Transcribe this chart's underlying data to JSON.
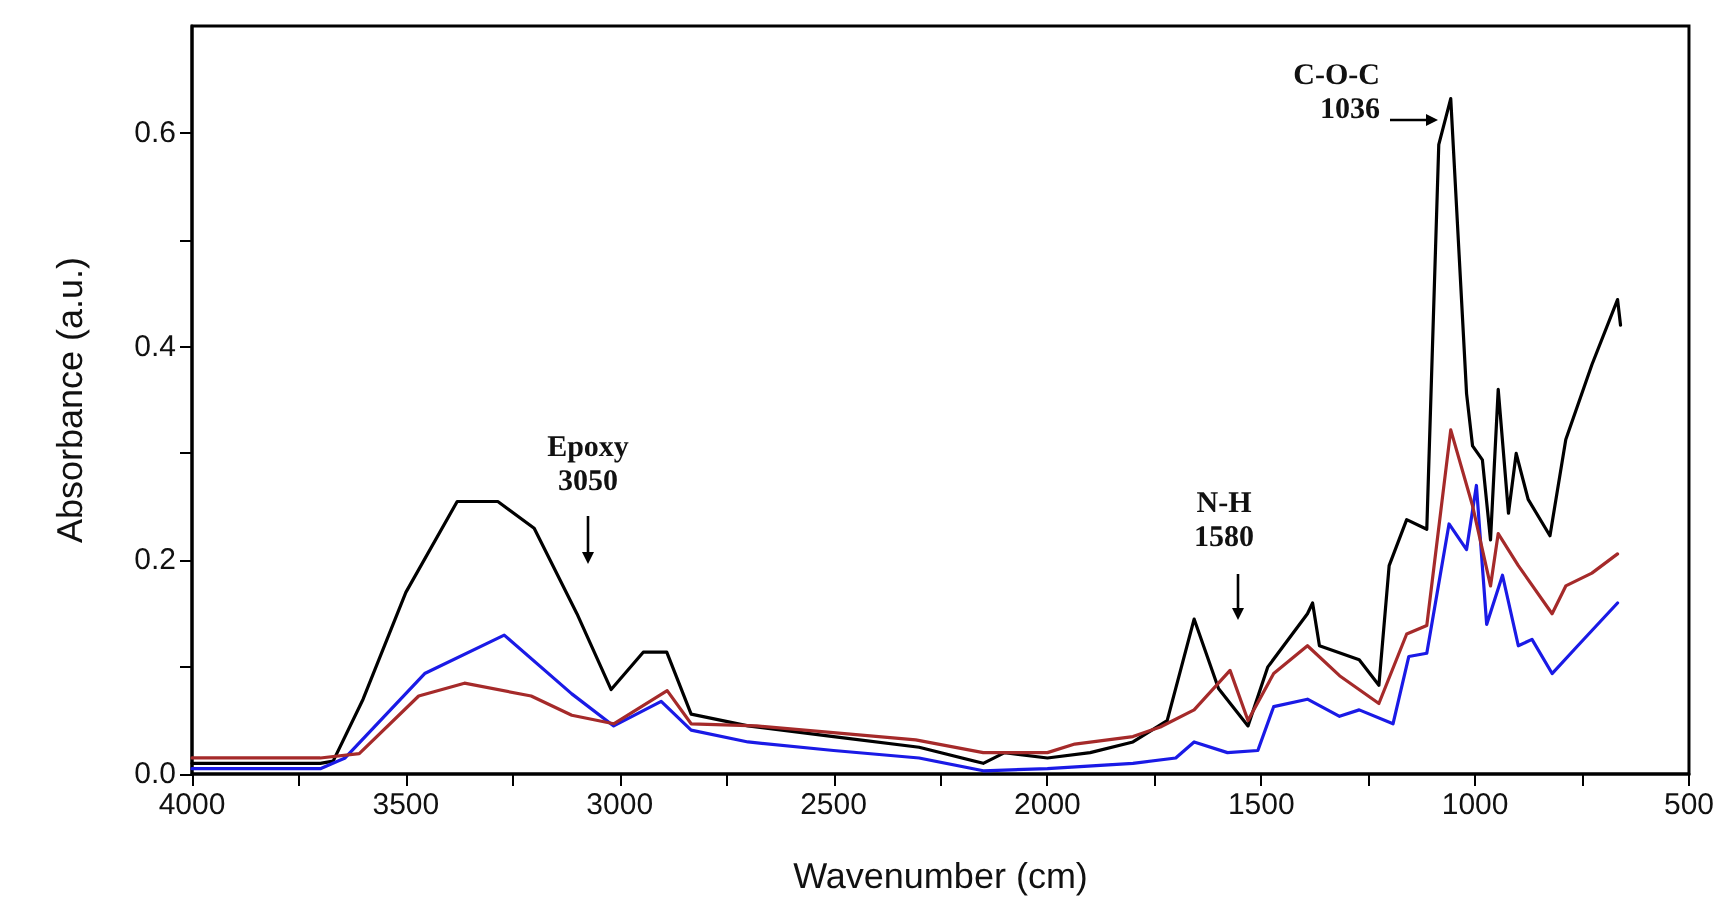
{
  "chart_data": {
    "type": "line",
    "xlabel": "Wavenumber (cm)",
    "ylabel": "Absorbance (a.u.)",
    "xlim": [
      4000,
      500
    ],
    "ylim": [
      0,
      0.7
    ],
    "xticks": [
      4000,
      {
        "value": 3750,
        "label": null
      },
      3500,
      {
        "value": 3250,
        "label": null
      },
      3000,
      {
        "value": 2750,
        "label": null
      },
      2500,
      {
        "value": 2250,
        "label": null
      },
      2000,
      {
        "value": 1750,
        "label": null
      },
      1500,
      {
        "value": 1250,
        "label": null
      },
      1000,
      {
        "value": 750,
        "label": null
      },
      500
    ],
    "yticks": [
      {
        "value": 0,
        "label": "0.0"
      },
      {
        "value": 0.1,
        "label": null
      },
      0.2,
      {
        "value": 0.3,
        "label": null
      },
      0.4,
      {
        "value": 0.5,
        "label": null
      },
      0.6
    ],
    "grid": false,
    "marker": "none",
    "line_style": "solid",
    "annotations": [
      "Epoxy\n3050",
      "N-H\n1580",
      "C-O-C\n1036"
    ],
    "series": [
      {
        "color": "#000000",
        "x": [
          4000,
          3700,
          3670,
          3600,
          3500,
          3380,
          3285,
          3200,
          3100,
          3020,
          2945,
          2890,
          2833,
          2700,
          2500,
          2300,
          2150,
          2100,
          2000,
          1900,
          1800,
          1720,
          1657,
          1600,
          1531,
          1485,
          1392,
          1380,
          1364,
          1271,
          1225,
          1201,
          1160,
          1113,
          1085,
          1057,
          1020,
          1006,
          983,
          964,
          946,
          922,
          904,
          876,
          825,
          788,
          727,
          667,
          660
        ],
        "values": [
          0.01,
          0.01,
          0.012,
          0.07,
          0.17,
          0.255,
          0.255,
          0.23,
          0.15,
          0.079,
          0.114,
          0.114,
          0.056,
          0.045,
          0.035,
          0.025,
          0.01,
          0.02,
          0.015,
          0.02,
          0.03,
          0.05,
          0.145,
          0.08,
          0.045,
          0.1,
          0.15,
          0.16,
          0.12,
          0.107,
          0.083,
          0.195,
          0.238,
          0.229,
          0.589,
          0.632,
          0.356,
          0.307,
          0.294,
          0.219,
          0.36,
          0.244,
          0.3,
          0.257,
          0.223,
          0.313,
          0.383,
          0.444,
          0.42
        ]
      },
      {
        "color": "#1a1ae6",
        "x": [
          4000,
          3700,
          3642,
          3456,
          3270,
          3112,
          3014,
          2903,
          2833,
          2700,
          2500,
          2300,
          2150,
          2000,
          1800,
          1700,
          1657,
          1579,
          1508,
          1471,
          1392,
          1317,
          1271,
          1192,
          1155,
          1113,
          1061,
          1020,
          997,
          973,
          936,
          899,
          867,
          820,
          760,
          667
        ],
        "values": [
          0.005,
          0.005,
          0.015,
          0.094,
          0.13,
          0.075,
          0.045,
          0.068,
          0.041,
          0.03,
          0.022,
          0.015,
          0.003,
          0.005,
          0.01,
          0.015,
          0.03,
          0.02,
          0.022,
          0.063,
          0.07,
          0.054,
          0.06,
          0.047,
          0.11,
          0.113,
          0.234,
          0.21,
          0.27,
          0.14,
          0.186,
          0.12,
          0.126,
          0.094,
          0.12,
          0.16
        ]
      },
      {
        "color": "#a52a2a",
        "x": [
          4000,
          3700,
          3609,
          3470,
          3363,
          3207,
          3112,
          3014,
          2889,
          2833,
          2680,
          2308,
          2150,
          2000,
          1936,
          1800,
          1736,
          1657,
          1573,
          1531,
          1471,
          1392,
          1317,
          1225,
          1160,
          1113,
          1057,
          1006,
          964,
          946,
          899,
          820,
          788,
          727,
          667
        ],
        "values": [
          0.015,
          0.015,
          0.019,
          0.073,
          0.085,
          0.073,
          0.055,
          0.047,
          0.078,
          0.047,
          0.045,
          0.032,
          0.02,
          0.02,
          0.028,
          0.035,
          0.044,
          0.06,
          0.097,
          0.05,
          0.094,
          0.12,
          0.092,
          0.066,
          0.131,
          0.139,
          0.322,
          0.251,
          0.176,
          0.225,
          0.195,
          0.15,
          0.176,
          0.188,
          0.206
        ]
      }
    ]
  }
}
